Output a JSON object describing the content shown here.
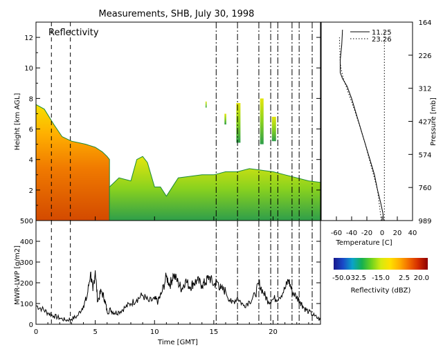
{
  "title": "Measurements, SHB, July 30, 1998",
  "chart_data": [
    {
      "type": "heatmap",
      "panel_label": "Reflectivity",
      "ylabel": "Height [km AGL]",
      "xlim": [
        0,
        24
      ],
      "ylim": [
        0,
        13
      ],
      "yticks": [
        "2",
        "4",
        "6",
        "8",
        "10",
        "12"
      ],
      "vlines_dashed": [
        1.3,
        2.9
      ],
      "vlines_dashdot": [
        15.2,
        17.0,
        18.8,
        19.8,
        20.4,
        21.6,
        22.2,
        23.3
      ],
      "echo_regions": [
        {
          "x": [
            0.0,
            0.7,
            1.5,
            2.2,
            3.0,
            3.6,
            4.2,
            5.0,
            5.6,
            6.0,
            6.2
          ],
          "top": [
            7.6,
            7.3,
            6.3,
            5.5,
            5.2,
            5.1,
            5.0,
            4.8,
            4.5,
            4.2,
            4.0
          ],
          "bottom": [
            0,
            0,
            0,
            0,
            0,
            0,
            0,
            0,
            0,
            0,
            0
          ],
          "level": "strong"
        },
        {
          "x": [
            6.2,
            7.0,
            8.0,
            8.5,
            9.0,
            9.4,
            10.0,
            10.5,
            11.0,
            12.0,
            13.0,
            14.0,
            15.0,
            16.0,
            17.0,
            18.0,
            19.0,
            20.0,
            21.0,
            22.0,
            23.0,
            24.0
          ],
          "top": [
            2.2,
            2.8,
            2.6,
            4.0,
            4.2,
            3.8,
            2.2,
            2.2,
            1.6,
            2.8,
            2.9,
            3.0,
            3.0,
            3.2,
            3.2,
            3.4,
            3.3,
            3.2,
            3.0,
            2.8,
            2.6,
            2.5
          ],
          "bottom": [
            0,
            0,
            0,
            0,
            0,
            0,
            0,
            0,
            0,
            0,
            0,
            0,
            0,
            0,
            0,
            0,
            0,
            0,
            0,
            0,
            0,
            0
          ],
          "level": "weak"
        }
      ],
      "echo_cells": [
        {
          "x": 16.9,
          "y": 5.1,
          "w": 0.35,
          "h": 2.6
        },
        {
          "x": 18.9,
          "y": 5.0,
          "w": 0.3,
          "h": 3.0
        },
        {
          "x": 19.9,
          "y": 5.2,
          "w": 0.35,
          "h": 1.6
        },
        {
          "x": 14.3,
          "y": 7.4,
          "w": 0.1,
          "h": 0.4
        },
        {
          "x": 15.9,
          "y": 6.3,
          "w": 0.15,
          "h": 0.7
        }
      ]
    },
    {
      "type": "line",
      "ylabel": "MWR-LWP [g/m2]",
      "xlabel": "Time [GMT]",
      "xlim": [
        0,
        24
      ],
      "ylim": [
        0,
        500
      ],
      "xticks": [
        "0",
        "5",
        "10",
        "15",
        "20"
      ],
      "yticks": [
        "0",
        "100",
        "200",
        "300",
        "400",
        "500"
      ],
      "x": [
        0.0,
        0.5,
        1.0,
        1.5,
        2.0,
        2.5,
        3.0,
        3.5,
        4.0,
        4.3,
        4.6,
        4.8,
        5.0,
        5.2,
        5.5,
        5.8,
        6.0,
        6.3,
        6.6,
        7.0,
        7.5,
        8.0,
        8.5,
        9.0,
        9.5,
        10.0,
        10.3,
        10.6,
        11.0,
        11.3,
        11.6,
        12.0,
        12.3,
        12.6,
        13.0,
        13.3,
        13.6,
        14.0,
        14.3,
        14.6,
        15.0,
        15.3,
        15.6,
        16.0,
        16.5,
        17.0,
        17.5,
        18.0,
        18.5,
        18.8,
        19.2,
        19.6,
        20.0,
        20.5,
        21.0,
        21.3,
        21.6,
        22.0,
        22.3,
        22.6,
        23.0,
        23.5,
        24.0
      ],
      "y": [
        90,
        75,
        55,
        40,
        30,
        20,
        25,
        40,
        90,
        130,
        250,
        160,
        260,
        110,
        160,
        120,
        60,
        70,
        55,
        60,
        80,
        100,
        120,
        140,
        110,
        120,
        110,
        150,
        230,
        190,
        240,
        200,
        170,
        210,
        180,
        200,
        210,
        190,
        200,
        230,
        190,
        205,
        170,
        160,
        100,
        130,
        90,
        110,
        140,
        200,
        150,
        110,
        120,
        130,
        170,
        215,
        160,
        130,
        110,
        80,
        60,
        40,
        20
      ]
    },
    {
      "type": "line",
      "xlabel": "Temperature [C]",
      "ylabel": "Pressure [mb]",
      "xlim": [
        -80,
        40
      ],
      "xticks": [
        "-60",
        "-40",
        "-20",
        "0",
        "20",
        "40"
      ],
      "pressure_ticks": [
        "164",
        "226",
        "312",
        "427",
        "574",
        "760",
        "989"
      ],
      "legend": [
        "11.25",
        "23.26"
      ],
      "series": [
        {
          "name": "11.25",
          "style": "solid",
          "t": [
            2,
            1,
            -2,
            -6,
            -10,
            -16,
            -22,
            -28,
            -34,
            -40,
            -46,
            -52,
            -55,
            -55,
            -53,
            -52
          ],
          "h": [
            0,
            0.5,
            1.2,
            2.0,
            3.0,
            4.0,
            5.0,
            6.0,
            7.0,
            8.0,
            8.8,
            9.3,
            9.7,
            10.5,
            11.5,
            12.5
          ]
        },
        {
          "name": "23.26",
          "style": "dotted",
          "t": [
            3,
            3,
            3,
            3,
            3,
            3,
            3,
            3,
            3,
            3,
            3,
            3,
            3,
            3,
            3,
            3
          ],
          "h": [
            0,
            1,
            2,
            3,
            4,
            5,
            6,
            7,
            8,
            9,
            10,
            10.5,
            11,
            11.5,
            12,
            12.5
          ]
        },
        {
          "name": "",
          "style": "dotted",
          "t": [
            -1,
            -6,
            -14,
            -22,
            -30,
            -38,
            -46,
            -52,
            -55,
            -56
          ],
          "h": [
            0,
            2,
            3.5,
            5.0,
            6.3,
            7.5,
            8.6,
            9.5,
            10.3,
            12.0
          ]
        }
      ]
    },
    {
      "type": "colorbar",
      "label": "Reflectivity (dBZ)",
      "range": [
        -50,
        20
      ],
      "ticks": [
        "-50.0",
        "-32.5",
        "-15.0",
        "2.5",
        "20.0"
      ],
      "stops": [
        "#17178c",
        "#1a49c8",
        "#0aa3c8",
        "#14b050",
        "#6cd21e",
        "#d4ea10",
        "#ffe000",
        "#ffae00",
        "#f26a00",
        "#d32a00",
        "#8c0000"
      ]
    }
  ]
}
